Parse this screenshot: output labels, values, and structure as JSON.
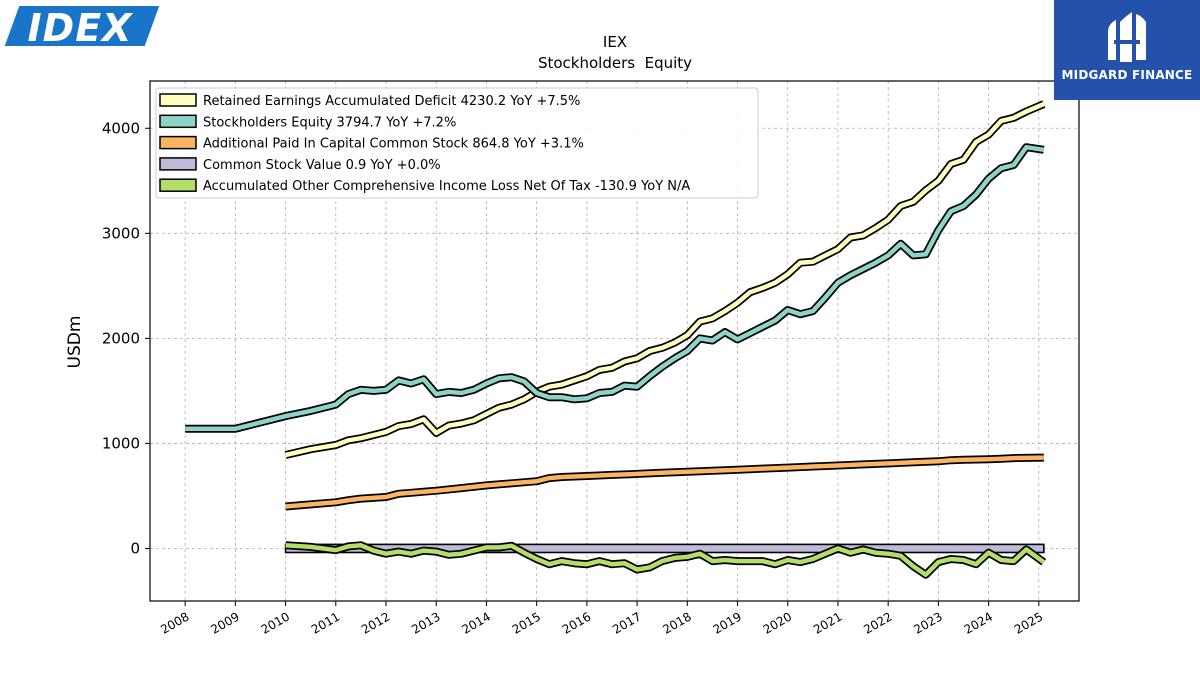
{
  "brand": {
    "left_logo_text": "IDEX",
    "right_logo_name": "MIDGARD FINANCE",
    "left_color": "#1a75c8",
    "right_bg": "#2452ab"
  },
  "chart_data": {
    "type": "line",
    "title": "IEX",
    "subtitle": "Stockholders  Equity",
    "xlabel": "",
    "ylabel": "USDm",
    "xlim": [
      2007.3,
      2025.8
    ],
    "ylim": [
      -500,
      4450
    ],
    "x_ticks": [
      2008,
      2009,
      2010,
      2011,
      2012,
      2013,
      2014,
      2015,
      2016,
      2017,
      2018,
      2019,
      2020,
      2021,
      2022,
      2023,
      2024,
      2025
    ],
    "x_tick_labels": [
      "2008",
      "2009",
      "2010",
      "2011",
      "2012",
      "2013",
      "2014",
      "2015",
      "2016",
      "2017",
      "2018",
      "2019",
      "2020",
      "2021",
      "2022",
      "2023",
      "2024",
      "2025"
    ],
    "y_ticks": [
      0,
      1000,
      2000,
      3000,
      4000
    ],
    "y_tick_labels": [
      "0",
      "1000",
      "2000",
      "3000",
      "4000"
    ],
    "grid": true,
    "legend_position": "top-left",
    "series": [
      {
        "name": "Retained Earnings Accumulated Deficit",
        "legend_label": "Retained Earnings Accumulated Deficit  4230.2 YoY +7.5%",
        "color": "#ffffc0",
        "points": [
          [
            2010.0,
            890
          ],
          [
            2010.5,
            945
          ],
          [
            2011.0,
            985
          ],
          [
            2011.25,
            1030
          ],
          [
            2011.5,
            1050
          ],
          [
            2012.0,
            1110
          ],
          [
            2012.25,
            1165
          ],
          [
            2012.5,
            1185
          ],
          [
            2012.75,
            1230
          ],
          [
            2013.0,
            1100
          ],
          [
            2013.25,
            1170
          ],
          [
            2013.5,
            1190
          ],
          [
            2013.75,
            1220
          ],
          [
            2014.0,
            1280
          ],
          [
            2014.25,
            1340
          ],
          [
            2014.5,
            1370
          ],
          [
            2014.75,
            1420
          ],
          [
            2015.0,
            1490
          ],
          [
            2015.25,
            1540
          ],
          [
            2015.5,
            1560
          ],
          [
            2015.75,
            1600
          ],
          [
            2016.0,
            1640
          ],
          [
            2016.25,
            1700
          ],
          [
            2016.5,
            1720
          ],
          [
            2016.75,
            1780
          ],
          [
            2017.0,
            1810
          ],
          [
            2017.25,
            1880
          ],
          [
            2017.5,
            1910
          ],
          [
            2017.75,
            1960
          ],
          [
            2018.0,
            2030
          ],
          [
            2018.25,
            2160
          ],
          [
            2018.5,
            2190
          ],
          [
            2018.75,
            2260
          ],
          [
            2019.0,
            2340
          ],
          [
            2019.25,
            2440
          ],
          [
            2019.5,
            2480
          ],
          [
            2019.75,
            2530
          ],
          [
            2020.0,
            2610
          ],
          [
            2020.25,
            2720
          ],
          [
            2020.5,
            2730
          ],
          [
            2020.75,
            2790
          ],
          [
            2021.0,
            2850
          ],
          [
            2021.25,
            2960
          ],
          [
            2021.5,
            2980
          ],
          [
            2021.75,
            3050
          ],
          [
            2022.0,
            3130
          ],
          [
            2022.25,
            3260
          ],
          [
            2022.5,
            3300
          ],
          [
            2022.75,
            3410
          ],
          [
            2023.0,
            3500
          ],
          [
            2023.25,
            3660
          ],
          [
            2023.5,
            3700
          ],
          [
            2023.75,
            3870
          ],
          [
            2024.0,
            3940
          ],
          [
            2024.25,
            4070
          ],
          [
            2024.5,
            4100
          ],
          [
            2024.75,
            4160
          ],
          [
            2025.1,
            4230.2
          ]
        ]
      },
      {
        "name": "Stockholders Equity",
        "legend_label": "Stockholders Equity  3794.7 YoY +7.2%",
        "color": "#8dd3c7",
        "points": [
          [
            2008.0,
            1140
          ],
          [
            2008.5,
            1140
          ],
          [
            2009.0,
            1140
          ],
          [
            2009.5,
            1200
          ],
          [
            2010.0,
            1260
          ],
          [
            2010.5,
            1310
          ],
          [
            2011.0,
            1370
          ],
          [
            2011.25,
            1470
          ],
          [
            2011.5,
            1510
          ],
          [
            2011.75,
            1500
          ],
          [
            2012.0,
            1510
          ],
          [
            2012.25,
            1600
          ],
          [
            2012.5,
            1570
          ],
          [
            2012.75,
            1610
          ],
          [
            2013.0,
            1470
          ],
          [
            2013.25,
            1490
          ],
          [
            2013.5,
            1480
          ],
          [
            2013.75,
            1510
          ],
          [
            2014.0,
            1570
          ],
          [
            2014.25,
            1620
          ],
          [
            2014.5,
            1630
          ],
          [
            2014.75,
            1590
          ],
          [
            2015.0,
            1480
          ],
          [
            2015.25,
            1440
          ],
          [
            2015.5,
            1440
          ],
          [
            2015.75,
            1420
          ],
          [
            2016.0,
            1430
          ],
          [
            2016.25,
            1480
          ],
          [
            2016.5,
            1490
          ],
          [
            2016.75,
            1550
          ],
          [
            2017.0,
            1540
          ],
          [
            2017.25,
            1640
          ],
          [
            2017.5,
            1730
          ],
          [
            2017.75,
            1810
          ],
          [
            2018.0,
            1880
          ],
          [
            2018.25,
            2000
          ],
          [
            2018.5,
            1980
          ],
          [
            2018.75,
            2060
          ],
          [
            2019.0,
            1990
          ],
          [
            2019.25,
            2050
          ],
          [
            2019.5,
            2110
          ],
          [
            2019.75,
            2170
          ],
          [
            2020.0,
            2270
          ],
          [
            2020.25,
            2230
          ],
          [
            2020.5,
            2260
          ],
          [
            2020.75,
            2390
          ],
          [
            2021.0,
            2530
          ],
          [
            2021.25,
            2600
          ],
          [
            2021.5,
            2660
          ],
          [
            2021.75,
            2720
          ],
          [
            2022.0,
            2790
          ],
          [
            2022.25,
            2900
          ],
          [
            2022.5,
            2790
          ],
          [
            2022.75,
            2800
          ],
          [
            2023.0,
            3030
          ],
          [
            2023.25,
            3210
          ],
          [
            2023.5,
            3260
          ],
          [
            2023.75,
            3370
          ],
          [
            2024.0,
            3520
          ],
          [
            2024.25,
            3620
          ],
          [
            2024.5,
            3650
          ],
          [
            2024.75,
            3820
          ],
          [
            2025.1,
            3794.7
          ]
        ]
      },
      {
        "name": "Additional Paid In Capital Common Stock",
        "legend_label": "Additional Paid In Capital Common Stock  864.8 YoY +3.1%",
        "color": "#fdb462",
        "points": [
          [
            2010.0,
            400
          ],
          [
            2010.5,
            420
          ],
          [
            2011.0,
            440
          ],
          [
            2011.25,
            460
          ],
          [
            2011.5,
            475
          ],
          [
            2012.0,
            490
          ],
          [
            2012.25,
            520
          ],
          [
            2012.5,
            530
          ],
          [
            2012.75,
            540
          ],
          [
            2013.0,
            550
          ],
          [
            2013.5,
            575
          ],
          [
            2014.0,
            600
          ],
          [
            2014.5,
            620
          ],
          [
            2015.0,
            640
          ],
          [
            2015.25,
            670
          ],
          [
            2015.5,
            680
          ],
          [
            2016.0,
            690
          ],
          [
            2016.5,
            700
          ],
          [
            2017.0,
            710
          ],
          [
            2017.5,
            720
          ],
          [
            2018.0,
            730
          ],
          [
            2018.5,
            740
          ],
          [
            2019.0,
            750
          ],
          [
            2019.5,
            760
          ],
          [
            2020.0,
            770
          ],
          [
            2020.5,
            780
          ],
          [
            2021.0,
            790
          ],
          [
            2021.5,
            800
          ],
          [
            2022.0,
            810
          ],
          [
            2022.5,
            820
          ],
          [
            2023.0,
            830
          ],
          [
            2023.25,
            840
          ],
          [
            2023.5,
            845
          ],
          [
            2024.0,
            850
          ],
          [
            2024.25,
            855
          ],
          [
            2024.5,
            860
          ],
          [
            2025.1,
            864.8
          ]
        ]
      },
      {
        "name": "Common Stock Value",
        "legend_label": "Common Stock Value  0.9 YoY +0.0%",
        "color": "#bebada",
        "points": [
          [
            2010.0,
            0.9
          ],
          [
            2025.1,
            0.9
          ]
        ],
        "fill_to": -0.09
      },
      {
        "name": "Accumulated Other Comprehensive Income Loss Net Of Tax",
        "legend_label": "Accumulated Other Comprehensive Income Loss Net Of Tax  -130.9 YoY N/A",
        "color": "#b3de69",
        "points": [
          [
            2010.0,
            30
          ],
          [
            2010.5,
            15
          ],
          [
            2011.0,
            -15
          ],
          [
            2011.25,
            20
          ],
          [
            2011.5,
            30
          ],
          [
            2011.75,
            -20
          ],
          [
            2012.0,
            -50
          ],
          [
            2012.25,
            -30
          ],
          [
            2012.5,
            -50
          ],
          [
            2012.75,
            -20
          ],
          [
            2013.0,
            -30
          ],
          [
            2013.25,
            -60
          ],
          [
            2013.5,
            -50
          ],
          [
            2013.75,
            -20
          ],
          [
            2014.0,
            10
          ],
          [
            2014.25,
            10
          ],
          [
            2014.5,
            25
          ],
          [
            2014.75,
            -40
          ],
          [
            2015.0,
            -100
          ],
          [
            2015.25,
            -150
          ],
          [
            2015.5,
            -120
          ],
          [
            2015.75,
            -140
          ],
          [
            2016.0,
            -150
          ],
          [
            2016.25,
            -120
          ],
          [
            2016.5,
            -150
          ],
          [
            2016.75,
            -140
          ],
          [
            2017.0,
            -200
          ],
          [
            2017.25,
            -180
          ],
          [
            2017.5,
            -120
          ],
          [
            2017.75,
            -90
          ],
          [
            2018.0,
            -80
          ],
          [
            2018.25,
            -50
          ],
          [
            2018.5,
            -120
          ],
          [
            2018.75,
            -110
          ],
          [
            2019.0,
            -120
          ],
          [
            2019.25,
            -120
          ],
          [
            2019.5,
            -120
          ],
          [
            2019.75,
            -150
          ],
          [
            2020.0,
            -110
          ],
          [
            2020.25,
            -130
          ],
          [
            2020.5,
            -100
          ],
          [
            2020.75,
            -50
          ],
          [
            2021.0,
            0
          ],
          [
            2021.25,
            -40
          ],
          [
            2021.5,
            -10
          ],
          [
            2021.75,
            -40
          ],
          [
            2022.0,
            -50
          ],
          [
            2022.25,
            -70
          ],
          [
            2022.5,
            -170
          ],
          [
            2022.75,
            -250
          ],
          [
            2023.0,
            -130
          ],
          [
            2023.25,
            -100
          ],
          [
            2023.5,
            -110
          ],
          [
            2023.75,
            -150
          ],
          [
            2024.0,
            -40
          ],
          [
            2024.25,
            -110
          ],
          [
            2024.5,
            -120
          ],
          [
            2024.75,
            -10
          ],
          [
            2025.1,
            -130.9
          ]
        ]
      }
    ]
  }
}
